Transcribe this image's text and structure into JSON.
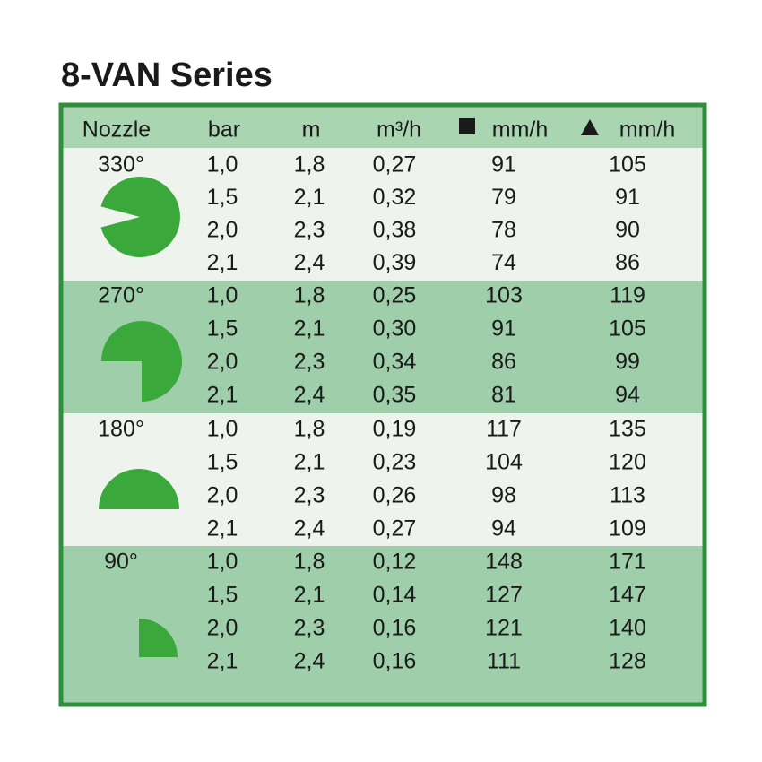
{
  "title": "8-VAN Series",
  "header": [
    "Nozzle",
    "bar",
    "m",
    "m³/h",
    "mm/h",
    "mm/h"
  ],
  "groups": [
    {
      "nozzle": "330°",
      "rows": [
        [
          "1,0",
          "1,8",
          "0,27",
          "91",
          "105"
        ],
        [
          "1,5",
          "2,1",
          "0,32",
          "79",
          "91"
        ],
        [
          "2,0",
          "2,3",
          "0,38",
          "78",
          "90"
        ],
        [
          "2,1",
          "2,4",
          "0,39",
          "74",
          "86"
        ]
      ]
    },
    {
      "nozzle": "270°",
      "rows": [
        [
          "1,0",
          "1,8",
          "0,25",
          "103",
          "119"
        ],
        [
          "1,5",
          "2,1",
          "0,30",
          "91",
          "105"
        ],
        [
          "2,0",
          "2,3",
          "0,34",
          "86",
          "99"
        ],
        [
          "2,1",
          "2,4",
          "0,35",
          "81",
          "94"
        ]
      ]
    },
    {
      "nozzle": "180°",
      "rows": [
        [
          "1,0",
          "1,8",
          "0,19",
          "117",
          "135"
        ],
        [
          "1,5",
          "2,1",
          "0,23",
          "104",
          "120"
        ],
        [
          "2,0",
          "2,3",
          "0,26",
          "98",
          "113"
        ],
        [
          "2,1",
          "2,4",
          "0,27",
          "94",
          "109"
        ]
      ]
    },
    {
      "nozzle": "90°",
      "rows": [
        [
          "1,0",
          "1,8",
          "0,12",
          "148",
          "171"
        ],
        [
          "1,5",
          "2,1",
          "0,14",
          "127",
          "147"
        ],
        [
          "2,0",
          "2,3",
          "0,16",
          "121",
          "140"
        ],
        [
          "2,1",
          "2,4",
          "0,16",
          "111",
          "128"
        ]
      ]
    }
  ]
}
